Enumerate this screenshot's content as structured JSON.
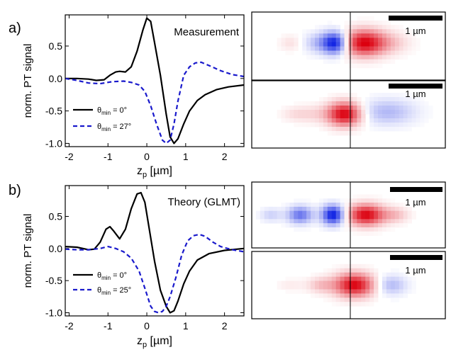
{
  "chart_data": [
    {
      "type": "line",
      "panel_label": "a)",
      "annotation": "Measurement",
      "xlabel": "z",
      "xlabel_sub": "p",
      "xlabel_unit": " [µm]",
      "ylabel": "norm. PT signal",
      "xlim": [
        -2.1,
        2.5
      ],
      "ylim": [
        -1.05,
        0.98
      ],
      "x_ticks": [
        -2,
        -1,
        0,
        1,
        2
      ],
      "y_ticks": [
        0.5,
        0.0,
        -0.5,
        -1.0
      ],
      "x_tick_labels": [
        "-2",
        "-1",
        "0",
        "1",
        "2"
      ],
      "y_tick_labels": [
        "0.5",
        "0.0",
        "-0.5",
        "-1.0"
      ],
      "legend_position": "bottom-left",
      "series": [
        {
          "name": "θmin = 0°",
          "name_main": "θ",
          "name_sub": "min",
          "name_value": " = 0°",
          "color": "#000000",
          "style": "solid",
          "x": [
            -2.1,
            -1.8,
            -1.5,
            -1.3,
            -1.1,
            -0.95,
            -0.8,
            -0.7,
            -0.55,
            -0.4,
            -0.25,
            -0.1,
            0.0,
            0.1,
            0.2,
            0.35,
            0.5,
            0.6,
            0.7,
            0.8,
            0.95,
            1.1,
            1.3,
            1.5,
            1.8,
            2.1,
            2.5
          ],
          "y": [
            0.0,
            0.0,
            -0.01,
            -0.03,
            -0.02,
            0.05,
            0.1,
            0.11,
            0.1,
            0.18,
            0.42,
            0.75,
            0.93,
            0.88,
            0.55,
            0.05,
            -0.55,
            -0.9,
            -1.0,
            -0.93,
            -0.7,
            -0.5,
            -0.34,
            -0.25,
            -0.17,
            -0.13,
            -0.1
          ]
        },
        {
          "name": "θmin = 27°",
          "name_main": "θ",
          "name_sub": "min",
          "name_value": " = 27°",
          "color": "#1a1acc",
          "style": "dashed",
          "x": [
            -2.1,
            -1.8,
            -1.5,
            -1.2,
            -0.9,
            -0.6,
            -0.4,
            -0.2,
            -0.05,
            0.1,
            0.25,
            0.4,
            0.5,
            0.6,
            0.7,
            0.8,
            0.95,
            1.1,
            1.25,
            1.4,
            1.6,
            1.9,
            2.2,
            2.5
          ],
          "y": [
            0.0,
            -0.03,
            -0.07,
            -0.08,
            -0.05,
            -0.04,
            -0.06,
            -0.1,
            -0.2,
            -0.42,
            -0.7,
            -0.95,
            -1.0,
            -0.95,
            -0.7,
            -0.35,
            0.05,
            0.18,
            0.24,
            0.25,
            0.2,
            0.12,
            0.06,
            0.03
          ]
        }
      ]
    },
    {
      "type": "line",
      "panel_label": "b)",
      "annotation": "Theory (GLMT)",
      "xlabel": "z",
      "xlabel_sub": "p",
      "xlabel_unit": " [µm]",
      "ylabel": "norm. PT signal",
      "xlim": [
        -2.1,
        2.5
      ],
      "ylim": [
        -1.05,
        0.98
      ],
      "x_ticks": [
        -2,
        -1,
        0,
        1,
        2
      ],
      "y_ticks": [
        0.5,
        0.0,
        -0.5,
        -1.0
      ],
      "x_tick_labels": [
        "-2",
        "-1",
        "0",
        "1",
        "2"
      ],
      "y_tick_labels": [
        "0.5",
        "0.0",
        "-0.5",
        "-1.0"
      ],
      "legend_position": "bottom-left",
      "series": [
        {
          "name": "θmin = 0°",
          "name_main": "θ",
          "name_sub": "min",
          "name_value": " = 0°",
          "color": "#000000",
          "style": "solid",
          "x": [
            -2.1,
            -1.8,
            -1.5,
            -1.35,
            -1.2,
            -1.05,
            -0.95,
            -0.85,
            -0.7,
            -0.55,
            -0.4,
            -0.25,
            -0.15,
            -0.05,
            0.05,
            0.2,
            0.35,
            0.5,
            0.6,
            0.7,
            0.8,
            0.95,
            1.1,
            1.3,
            1.6,
            2.0,
            2.5
          ],
          "y": [
            0.03,
            0.02,
            -0.02,
            -0.01,
            0.1,
            0.3,
            0.34,
            0.27,
            0.15,
            0.3,
            0.62,
            0.85,
            0.87,
            0.72,
            0.35,
            -0.2,
            -0.65,
            -0.9,
            -1.0,
            -0.97,
            -0.82,
            -0.55,
            -0.35,
            -0.18,
            -0.08,
            -0.03,
            0.0
          ]
        },
        {
          "name": "θmin = 25°",
          "name_main": "θ",
          "name_sub": "min",
          "name_value": " = 25°",
          "color": "#1a1acc",
          "style": "dashed",
          "x": [
            -2.1,
            -1.8,
            -1.5,
            -1.2,
            -1.0,
            -0.8,
            -0.6,
            -0.4,
            -0.2,
            -0.05,
            0.1,
            0.2,
            0.3,
            0.4,
            0.5,
            0.6,
            0.75,
            0.9,
            1.05,
            1.2,
            1.35,
            1.5,
            1.7,
            1.9,
            2.2,
            2.5
          ],
          "y": [
            -0.01,
            -0.02,
            -0.02,
            0.0,
            0.03,
            0.0,
            -0.05,
            -0.15,
            -0.35,
            -0.62,
            -0.9,
            -0.98,
            -1.0,
            -0.98,
            -0.9,
            -0.75,
            -0.45,
            -0.1,
            0.12,
            0.2,
            0.22,
            0.19,
            0.1,
            0.03,
            -0.02,
            -0.05
          ]
        }
      ]
    },
    {
      "type": "heatmap",
      "panel": "a-top",
      "scalebar_label": "1 µm",
      "blobs": [
        {
          "x": 0.43,
          "y": 0.45,
          "sx": 0.045,
          "sy": 0.11,
          "amp": -1.0
        },
        {
          "x": 0.34,
          "y": 0.45,
          "sx": 0.05,
          "sy": 0.1,
          "amp": -0.25
        },
        {
          "x": 0.2,
          "y": 0.45,
          "sx": 0.04,
          "sy": 0.08,
          "amp": 0.12
        },
        {
          "x": 0.58,
          "y": 0.45,
          "sx": 0.075,
          "sy": 0.13,
          "amp": 1.0
        },
        {
          "x": 0.72,
          "y": 0.45,
          "sx": 0.07,
          "sy": 0.11,
          "amp": 0.18
        }
      ]
    },
    {
      "type": "heatmap",
      "panel": "a-bottom",
      "scalebar_label": "1 µm",
      "blobs": [
        {
          "x": 0.48,
          "y": 0.5,
          "sx": 0.06,
          "sy": 0.12,
          "amp": 1.0
        },
        {
          "x": 0.32,
          "y": 0.5,
          "sx": 0.08,
          "sy": 0.09,
          "amp": 0.15
        },
        {
          "x": 0.7,
          "y": 0.47,
          "sx": 0.1,
          "sy": 0.13,
          "amp": -0.3
        },
        {
          "x": 0.22,
          "y": 0.5,
          "sx": 0.05,
          "sy": 0.07,
          "amp": 0.08
        }
      ]
    },
    {
      "type": "heatmap",
      "panel": "b-top",
      "scalebar_label": "1 µm",
      "blobs": [
        {
          "x": 0.42,
          "y": 0.5,
          "sx": 0.04,
          "sy": 0.1,
          "amp": -1.0
        },
        {
          "x": 0.25,
          "y": 0.5,
          "sx": 0.045,
          "sy": 0.09,
          "amp": -0.6
        },
        {
          "x": 0.1,
          "y": 0.5,
          "sx": 0.04,
          "sy": 0.07,
          "amp": -0.2
        },
        {
          "x": 0.59,
          "y": 0.5,
          "sx": 0.065,
          "sy": 0.11,
          "amp": 1.0
        },
        {
          "x": 0.74,
          "y": 0.5,
          "sx": 0.05,
          "sy": 0.08,
          "amp": 0.25
        }
      ]
    },
    {
      "type": "heatmap",
      "panel": "b-bottom",
      "scalebar_label": "1 µm",
      "blobs": [
        {
          "x": 0.53,
          "y": 0.5,
          "sx": 0.07,
          "sy": 0.12,
          "amp": 1.0
        },
        {
          "x": 0.36,
          "y": 0.5,
          "sx": 0.05,
          "sy": 0.08,
          "amp": 0.25
        },
        {
          "x": 0.2,
          "y": 0.5,
          "sx": 0.05,
          "sy": 0.06,
          "amp": 0.08
        },
        {
          "x": 0.72,
          "y": 0.5,
          "sx": 0.055,
          "sy": 0.1,
          "amp": -0.3
        }
      ]
    }
  ]
}
